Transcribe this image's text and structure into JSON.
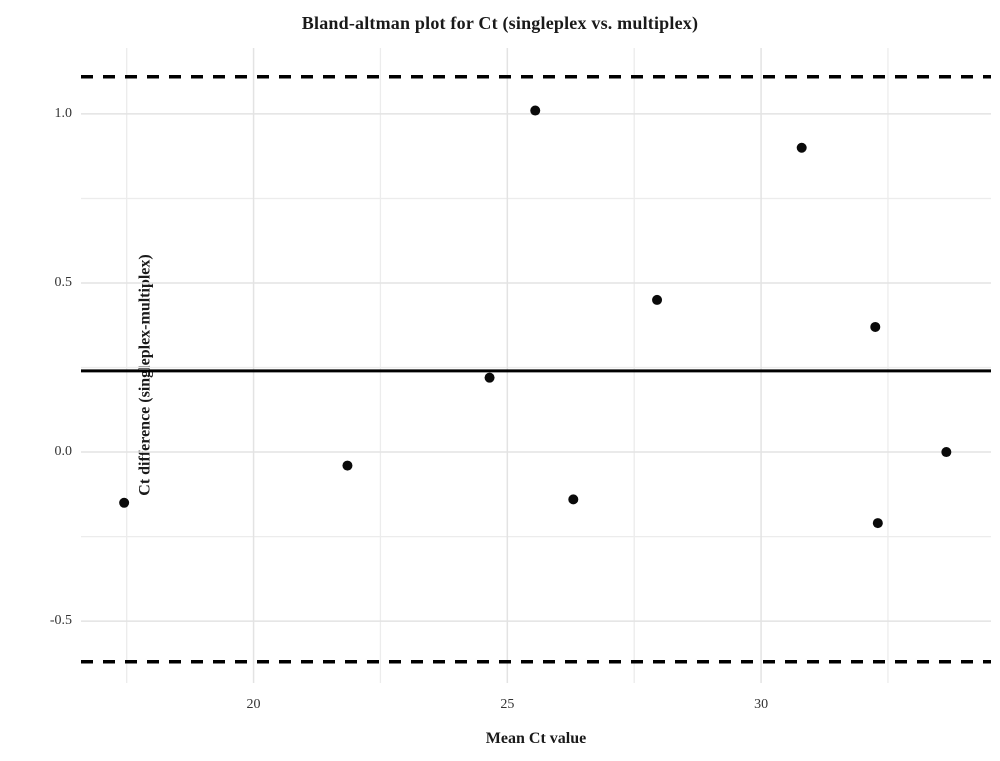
{
  "chart_data": {
    "type": "scatter",
    "title": "Bland-altman plot for Ct (singleplex vs. multiplex)",
    "xlabel": "Mean Ct value",
    "ylabel": "Ct difference (singleplex-multiplex)",
    "points": [
      {
        "x": 17.45,
        "y": -0.15
      },
      {
        "x": 21.85,
        "y": -0.04
      },
      {
        "x": 24.65,
        "y": 0.22
      },
      {
        "x": 25.55,
        "y": 1.01
      },
      {
        "x": 26.3,
        "y": -0.14
      },
      {
        "x": 27.95,
        "y": 0.45
      },
      {
        "x": 30.8,
        "y": 0.9
      },
      {
        "x": 32.25,
        "y": 0.37
      },
      {
        "x": 32.3,
        "y": -0.21
      },
      {
        "x": 33.65,
        "y": 0.0
      }
    ],
    "mean_line": 0.24,
    "upper_loa": 1.11,
    "lower_loa": -0.62,
    "xlim": [
      16.6,
      34.53
    ],
    "ylim": [
      -0.683,
      1.195
    ],
    "x_major_ticks": [
      20,
      25,
      30
    ],
    "x_minor_ticks": [
      17.5,
      22.5,
      27.5,
      32.5
    ],
    "y_major_ticks": [
      1.0,
      0.5,
      0.0,
      -0.5
    ],
    "y_minor_ticks": [
      0.75,
      0.25,
      -0.25
    ],
    "x_tick_labels": [
      "20",
      "25",
      "30"
    ],
    "y_tick_labels": [
      "1.0",
      "0.5",
      "0.0",
      "-0.5"
    ],
    "grid": true,
    "legend": "none",
    "colors": {
      "point": "#0a0a0a",
      "line": "#000000",
      "grid_major": "#e3e3e3",
      "grid_minor": "#ececec",
      "text": "#1a1a1a",
      "tick_text": "#333333",
      "background": "#ffffff"
    }
  }
}
